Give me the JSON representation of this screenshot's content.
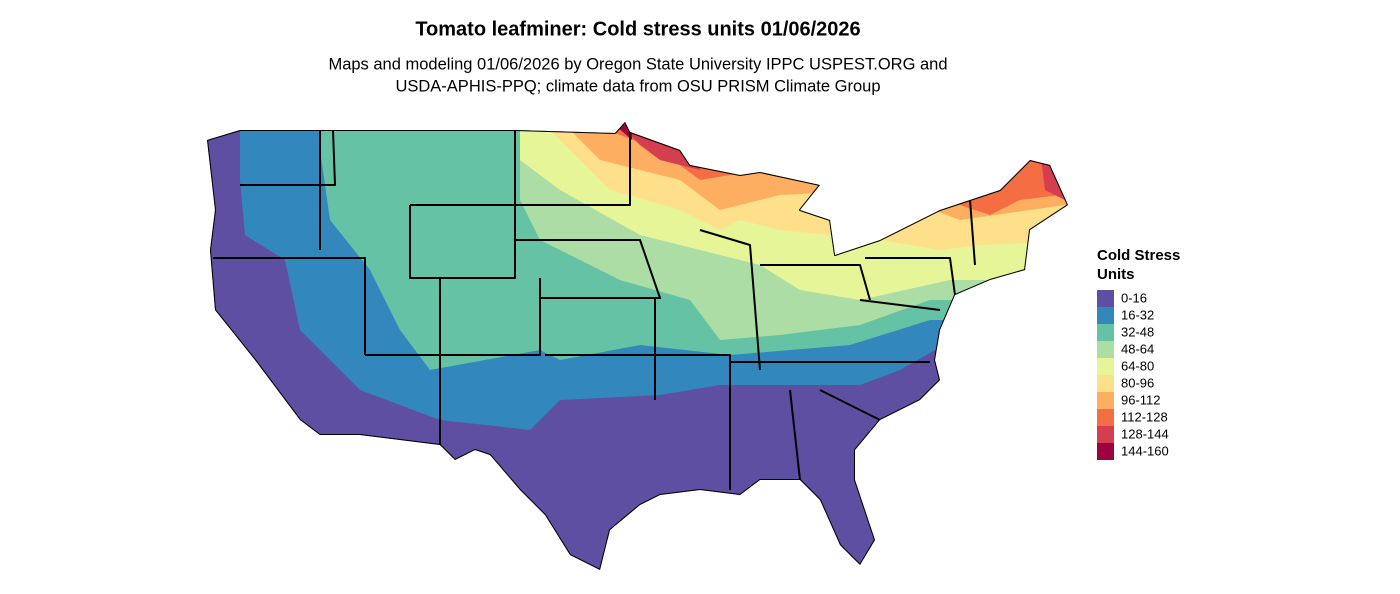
{
  "header": {
    "title": "Tomato leafminer: Cold stress units 01/06/2026",
    "subtitle": [
      "Maps and modeling 01/06/2026 by Oregon State University IPPC USPEST.ORG and",
      "USDA-APHIS-PPQ; climate data from OSU PRISM Climate Group"
    ]
  },
  "legend": {
    "title": [
      "Cold Stress",
      "Units"
    ],
    "items": [
      {
        "label": "0-16",
        "color": "#5e4fa2"
      },
      {
        "label": "16-32",
        "color": "#3288bd"
      },
      {
        "label": "32-48",
        "color": "#66c2a5"
      },
      {
        "label": "48-64",
        "color": "#abdda4"
      },
      {
        "label": "64-80",
        "color": "#e6f598"
      },
      {
        "label": "80-96",
        "color": "#fee08b"
      },
      {
        "label": "96-112",
        "color": "#fdae61"
      },
      {
        "label": "112-128",
        "color": "#f46d43"
      },
      {
        "label": "128-144",
        "color": "#d53e4f"
      },
      {
        "label": "144-160",
        "color": "#9e0142"
      }
    ]
  }
}
